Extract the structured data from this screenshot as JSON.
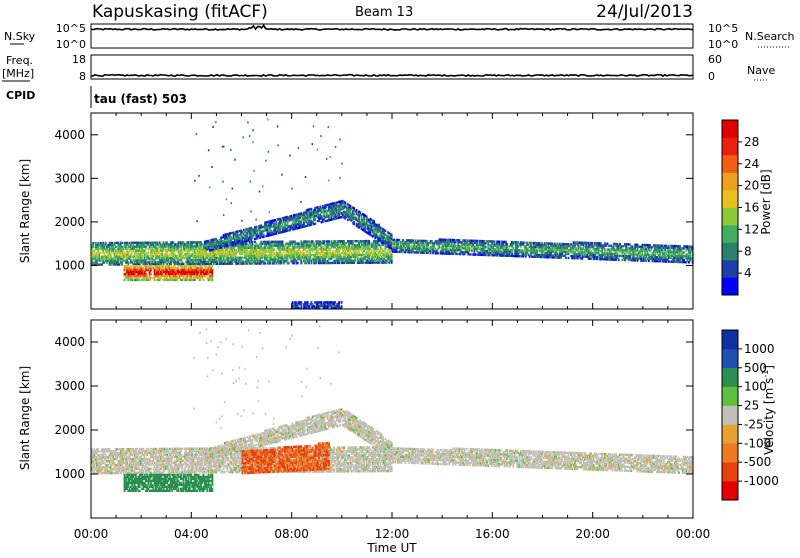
{
  "header": {
    "station": "Kapuskasing (fitACF)",
    "beam": "Beam 13",
    "date": "24/Jul/2013"
  },
  "top_panels": {
    "nsky_label": "N.Sky",
    "nsky_ticks": [
      "10^5",
      "10^0"
    ],
    "nsearch_label": "N.Search",
    "nsearch_ticks": [
      "10^5",
      "10^0"
    ],
    "freq_label": "Freq.",
    "freq_unit": "[MHz]",
    "freq_ticks": [
      "18",
      "8"
    ],
    "nave_label": "Nave",
    "nave_ticks": [
      "60",
      "0"
    ],
    "cpid_label": "CPID",
    "cpid_value": "tau (fast) 503"
  },
  "colors": {
    "power_scale": [
      "#0000ff",
      "#1f3fa8",
      "#2a7f6f",
      "#3faf5f",
      "#8fc83a",
      "#e8c020",
      "#f0a020",
      "#f06010",
      "#e82010",
      "#e00000"
    ],
    "velocity_scale": [
      "#1030a0",
      "#2050b0",
      "#2a8f4f",
      "#5fc040",
      "#c0c0b8",
      "#e8a030",
      "#f07820",
      "#e84010",
      "#e00000"
    ]
  },
  "chart_data": [
    {
      "type": "heatmap",
      "title": "Power",
      "xlabel": "Time UT",
      "ylabel": "Slant Range [km]",
      "xticks": [
        "00:00",
        "04:00",
        "08:00",
        "12:00",
        "16:00",
        "20:00",
        "00:00"
      ],
      "yticks": [
        1000,
        2000,
        3000,
        4000
      ],
      "ylim": [
        0,
        4500
      ],
      "colorbar_label": "Power [dB]",
      "colorbar_ticks": [
        "28",
        "24",
        "20",
        "16",
        "12",
        "8",
        "4"
      ],
      "colorbar_range": [
        0,
        30
      ],
      "bands": [
        {
          "t": [
            0.0,
            12.0
          ],
          "r_low": [
            1000,
            1050
          ],
          "r_high": [
            1500,
            1550
          ],
          "peak": 14
        },
        {
          "t": [
            1.3,
            4.8
          ],
          "r_low": [
            650,
            650
          ],
          "r_high": [
            1000,
            1000
          ],
          "peak": 28
        },
        {
          "t": [
            4.5,
            10.0
          ],
          "r_low": [
            1300,
            2100
          ],
          "r_high": [
            1550,
            2500
          ],
          "peak": 8
        },
        {
          "t": [
            10.0,
            12.0
          ],
          "r_low": [
            2100,
            1350
          ],
          "r_high": [
            2500,
            1700
          ],
          "peak": 8
        },
        {
          "t": [
            12.0,
            24.0
          ],
          "r_low": [
            1300,
            1050
          ],
          "r_high": [
            1600,
            1450
          ],
          "peak": 10
        },
        {
          "t": [
            8.0,
            10.0
          ],
          "r_low": [
            0,
            0
          ],
          "r_high": [
            150,
            150
          ],
          "peak": 5
        }
      ]
    },
    {
      "type": "heatmap",
      "title": "Velocity",
      "xlabel": "Time UT",
      "ylabel": "Slant Range [km]",
      "xticks": [
        "00:00",
        "04:00",
        "08:00",
        "12:00",
        "16:00",
        "20:00",
        "00:00"
      ],
      "yticks": [
        1000,
        2000,
        3000,
        4000
      ],
      "ylim": [
        0,
        4500
      ],
      "colorbar_label": "Velocity [m s^-1]",
      "colorbar_ticks": [
        "1000",
        "500",
        "100",
        "25",
        "-25",
        "-100",
        "-500",
        "-1000"
      ],
      "bands": [
        {
          "t": [
            0.0,
            12.0
          ],
          "r_low": [
            1000,
            1050
          ],
          "r_high": [
            1550,
            1600
          ],
          "value": 0
        },
        {
          "t": [
            1.3,
            4.8
          ],
          "r_low": [
            600,
            600
          ],
          "r_high": [
            1000,
            1000
          ],
          "value": 120
        },
        {
          "t": [
            4.5,
            10.0
          ],
          "r_low": [
            1300,
            2100
          ],
          "r_high": [
            1550,
            2500
          ],
          "value": 0
        },
        {
          "t": [
            10.0,
            12.0
          ],
          "r_low": [
            2100,
            1350
          ],
          "r_high": [
            2500,
            1700
          ],
          "value": 0
        },
        {
          "t": [
            12.0,
            24.0
          ],
          "r_low": [
            1250,
            1000
          ],
          "r_high": [
            1600,
            1400
          ],
          "value": 0
        },
        {
          "t": [
            6.0,
            9.5
          ],
          "r_low": [
            1000,
            1100
          ],
          "r_high": [
            1500,
            1700
          ],
          "value": -300
        }
      ]
    }
  ],
  "line_data": {
    "nsky_level": 0.78,
    "nsearch_level": 0.68,
    "freq_level": 0.15,
    "nave_level": 0.15
  }
}
